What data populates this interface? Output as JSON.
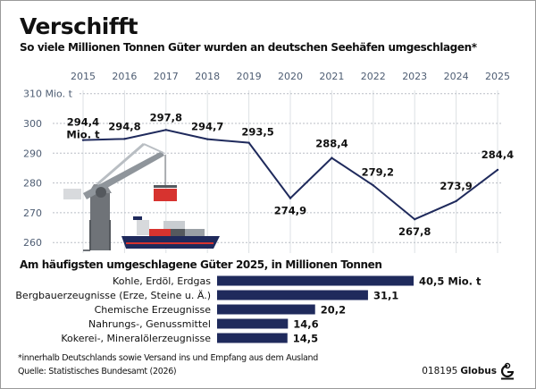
{
  "title": "Verschifft",
  "subtitle": "So viele Millionen Tonnen Güter wurden an deutschen Seehäfen umgeschlagen*",
  "chart_data": [
    {
      "type": "line",
      "x": [
        "2015",
        "2016",
        "2017",
        "2018",
        "2019",
        "2020",
        "2021",
        "2022",
        "2023",
        "2024",
        "2025"
      ],
      "values": [
        294.4,
        294.8,
        297.8,
        294.7,
        293.5,
        274.9,
        288.4,
        279.2,
        267.8,
        273.9,
        284.4
      ],
      "data_labels": [
        "294,4",
        "294,8",
        "297,8",
        "294,7",
        "293,5",
        "274,9",
        "288,4",
        "279,2",
        "267,8",
        "273,9",
        "284,4"
      ],
      "first_label_unit": "Mio. t",
      "ylim": [
        260,
        310
      ],
      "yticks": [
        260,
        270,
        280,
        290,
        300,
        310
      ],
      "ytick_labels": [
        "260",
        "270",
        "280",
        "290",
        "300",
        "310 Mio. t"
      ],
      "grid": true,
      "line_color": "#1f2a5c"
    },
    {
      "type": "bar",
      "orientation": "horizontal",
      "title": "Am häufigsten umgeschlagene Güter 2025, in Millionen Tonnen",
      "categories": [
        "Kohle, Erdöl, Erdgas",
        "Bergbauerzeugnisse (Erze, Steine u. Ä.)",
        "Chemische Erzeugnisse",
        "Nahrungs-, Genussmittel",
        "Kokerei-, Mineralölerzeugnisse"
      ],
      "values": [
        40.5,
        31.1,
        20.2,
        14.6,
        14.5
      ],
      "data_labels": [
        "40,5 Mio. t",
        "31,1",
        "20,2",
        "14,6",
        "14,5"
      ],
      "bar_color": "#1f2a5c"
    }
  ],
  "footnote": "*innerhalb Deutschlands sowie Versand ins und Empfang aus dem Ausland",
  "source": "Quelle: Statistisches Bundesamt (2026)",
  "credit_id": "018195",
  "credit_brand": "Globus"
}
